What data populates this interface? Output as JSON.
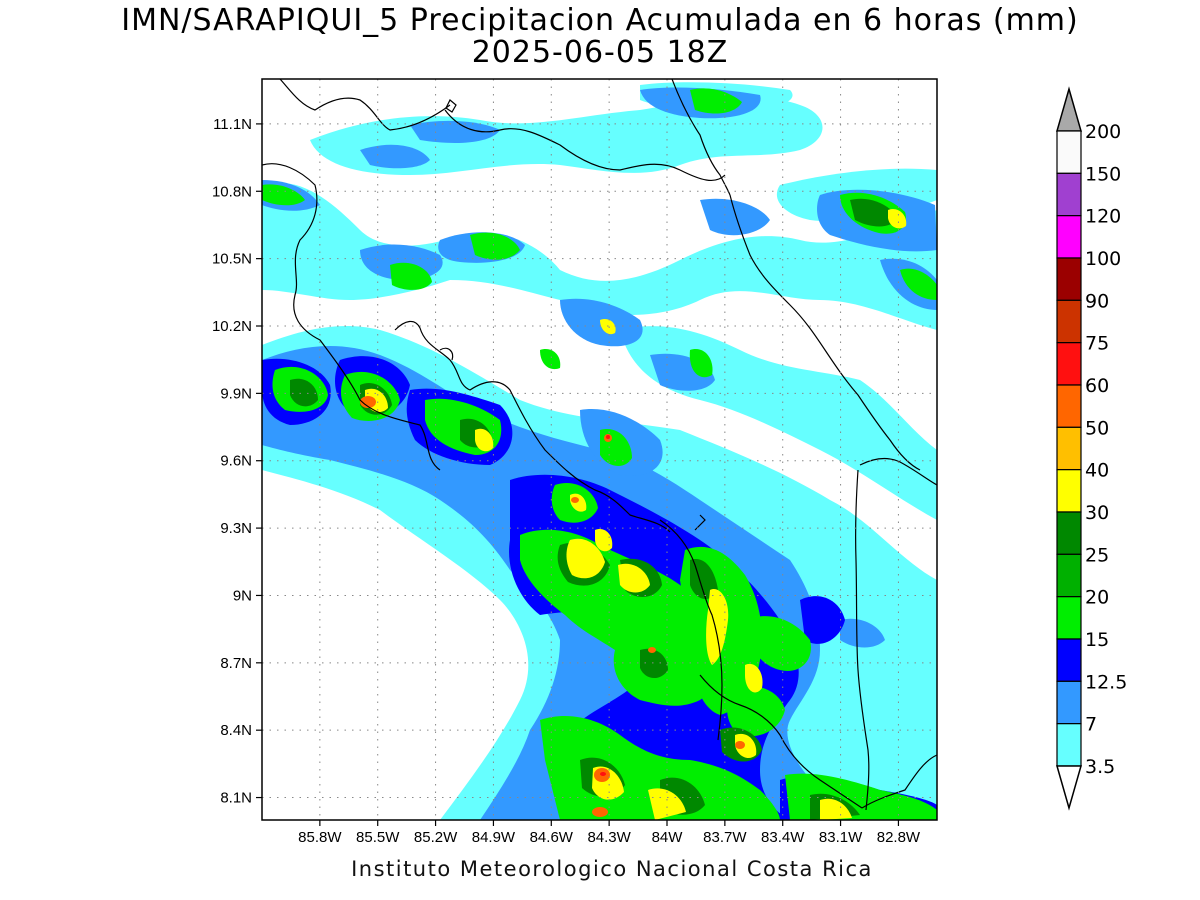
{
  "title": {
    "line1": "IMN/SARAPIQUI_5 Precipitacion Acumulada en 6 horas (mm)",
    "line2": "2025-06-05 18Z"
  },
  "footer": "Instituto Meteorologico Nacional Costa Rica",
  "map": {
    "lon_range": [
      -86.1,
      -82.6
    ],
    "lat_range": [
      8.0,
      11.3
    ],
    "lon_ticks": [
      "85.8W",
      "85.5W",
      "85.2W",
      "84.9W",
      "84.6W",
      "84.3W",
      "84W",
      "83.7W",
      "83.4W",
      "83.1W",
      "82.8W"
    ],
    "lat_ticks": [
      "11.1N",
      "10.8N",
      "10.5N",
      "10.2N",
      "9.9N",
      "9.6N",
      "9.3N",
      "9N",
      "8.7N",
      "8.4N",
      "8.1N"
    ],
    "gridlines": "dotted"
  },
  "colorbar": {
    "labels": [
      "200",
      "150",
      "120",
      "100",
      "90",
      "75",
      "60",
      "50",
      "40",
      "30",
      "25",
      "20",
      "15",
      "12.5",
      "7",
      "3.5"
    ],
    "colors": [
      "#fafafa",
      "#a040d0",
      "#ff00ff",
      "#9b0000",
      "#cc3300",
      "#ff1010",
      "#ff6600",
      "#ffbf00",
      "#ffff00",
      "#008800",
      "#00b000",
      "#00ee00",
      "#0000ff",
      "#3399ff",
      "#66ffff"
    ],
    "top_color": "#a9a9a9",
    "bottom_color": "#ffffff"
  }
}
